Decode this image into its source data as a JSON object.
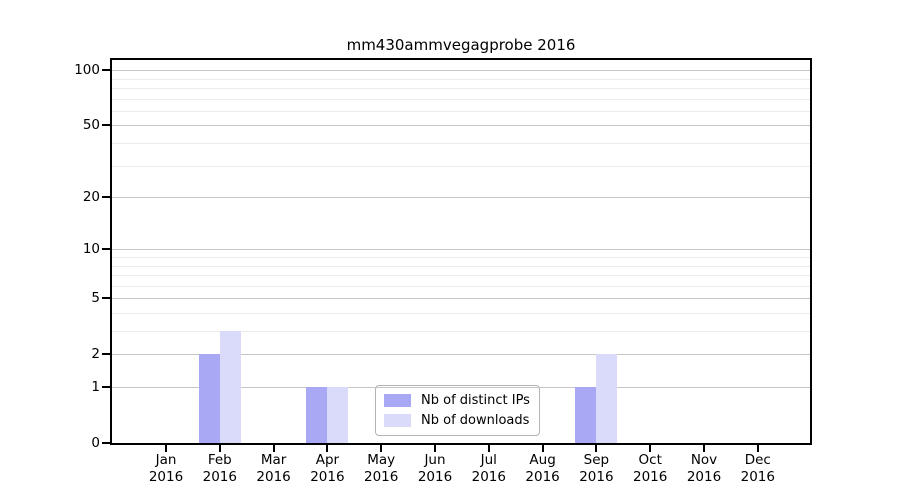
{
  "title": "mm430ammvegagprobe 2016",
  "chart_data": {
    "type": "bar",
    "title": "mm430ammvegagprobe 2016",
    "categories": [
      "Jan",
      "Feb",
      "Mar",
      "Apr",
      "May",
      "Jun",
      "Jul",
      "Aug",
      "Sep",
      "Oct",
      "Nov",
      "Dec"
    ],
    "category_year": "2016",
    "series": [
      {
        "name": "Nb of distinct IPs",
        "color": "#a8a8f5",
        "values": [
          0,
          2,
          0,
          1,
          0,
          0,
          0,
          0,
          1,
          0,
          0,
          0
        ]
      },
      {
        "name": "Nb of downloads",
        "color": "#dadafa",
        "values": [
          0,
          3,
          0,
          1,
          0,
          0,
          0,
          0,
          2,
          0,
          0,
          0
        ]
      }
    ],
    "xlabel": "",
    "ylabel": "",
    "y_scale": "log10(value+1)",
    "y_major_ticks": [
      0,
      1,
      2,
      5,
      10,
      20,
      50,
      100
    ],
    "y_minor_gridlines": [
      3,
      4,
      6,
      7,
      8,
      9,
      30,
      40,
      60,
      70,
      80,
      90
    ],
    "ylim": [
      0,
      113
    ],
    "grid": "on",
    "legend_position": "lower center inside plot",
    "colors": {
      "axis": "#000000",
      "grid_major": "#c6c6c6",
      "grid_minor": "#ebebeb",
      "legend_border": "#b3b3b3",
      "background": "#ffffff"
    }
  }
}
